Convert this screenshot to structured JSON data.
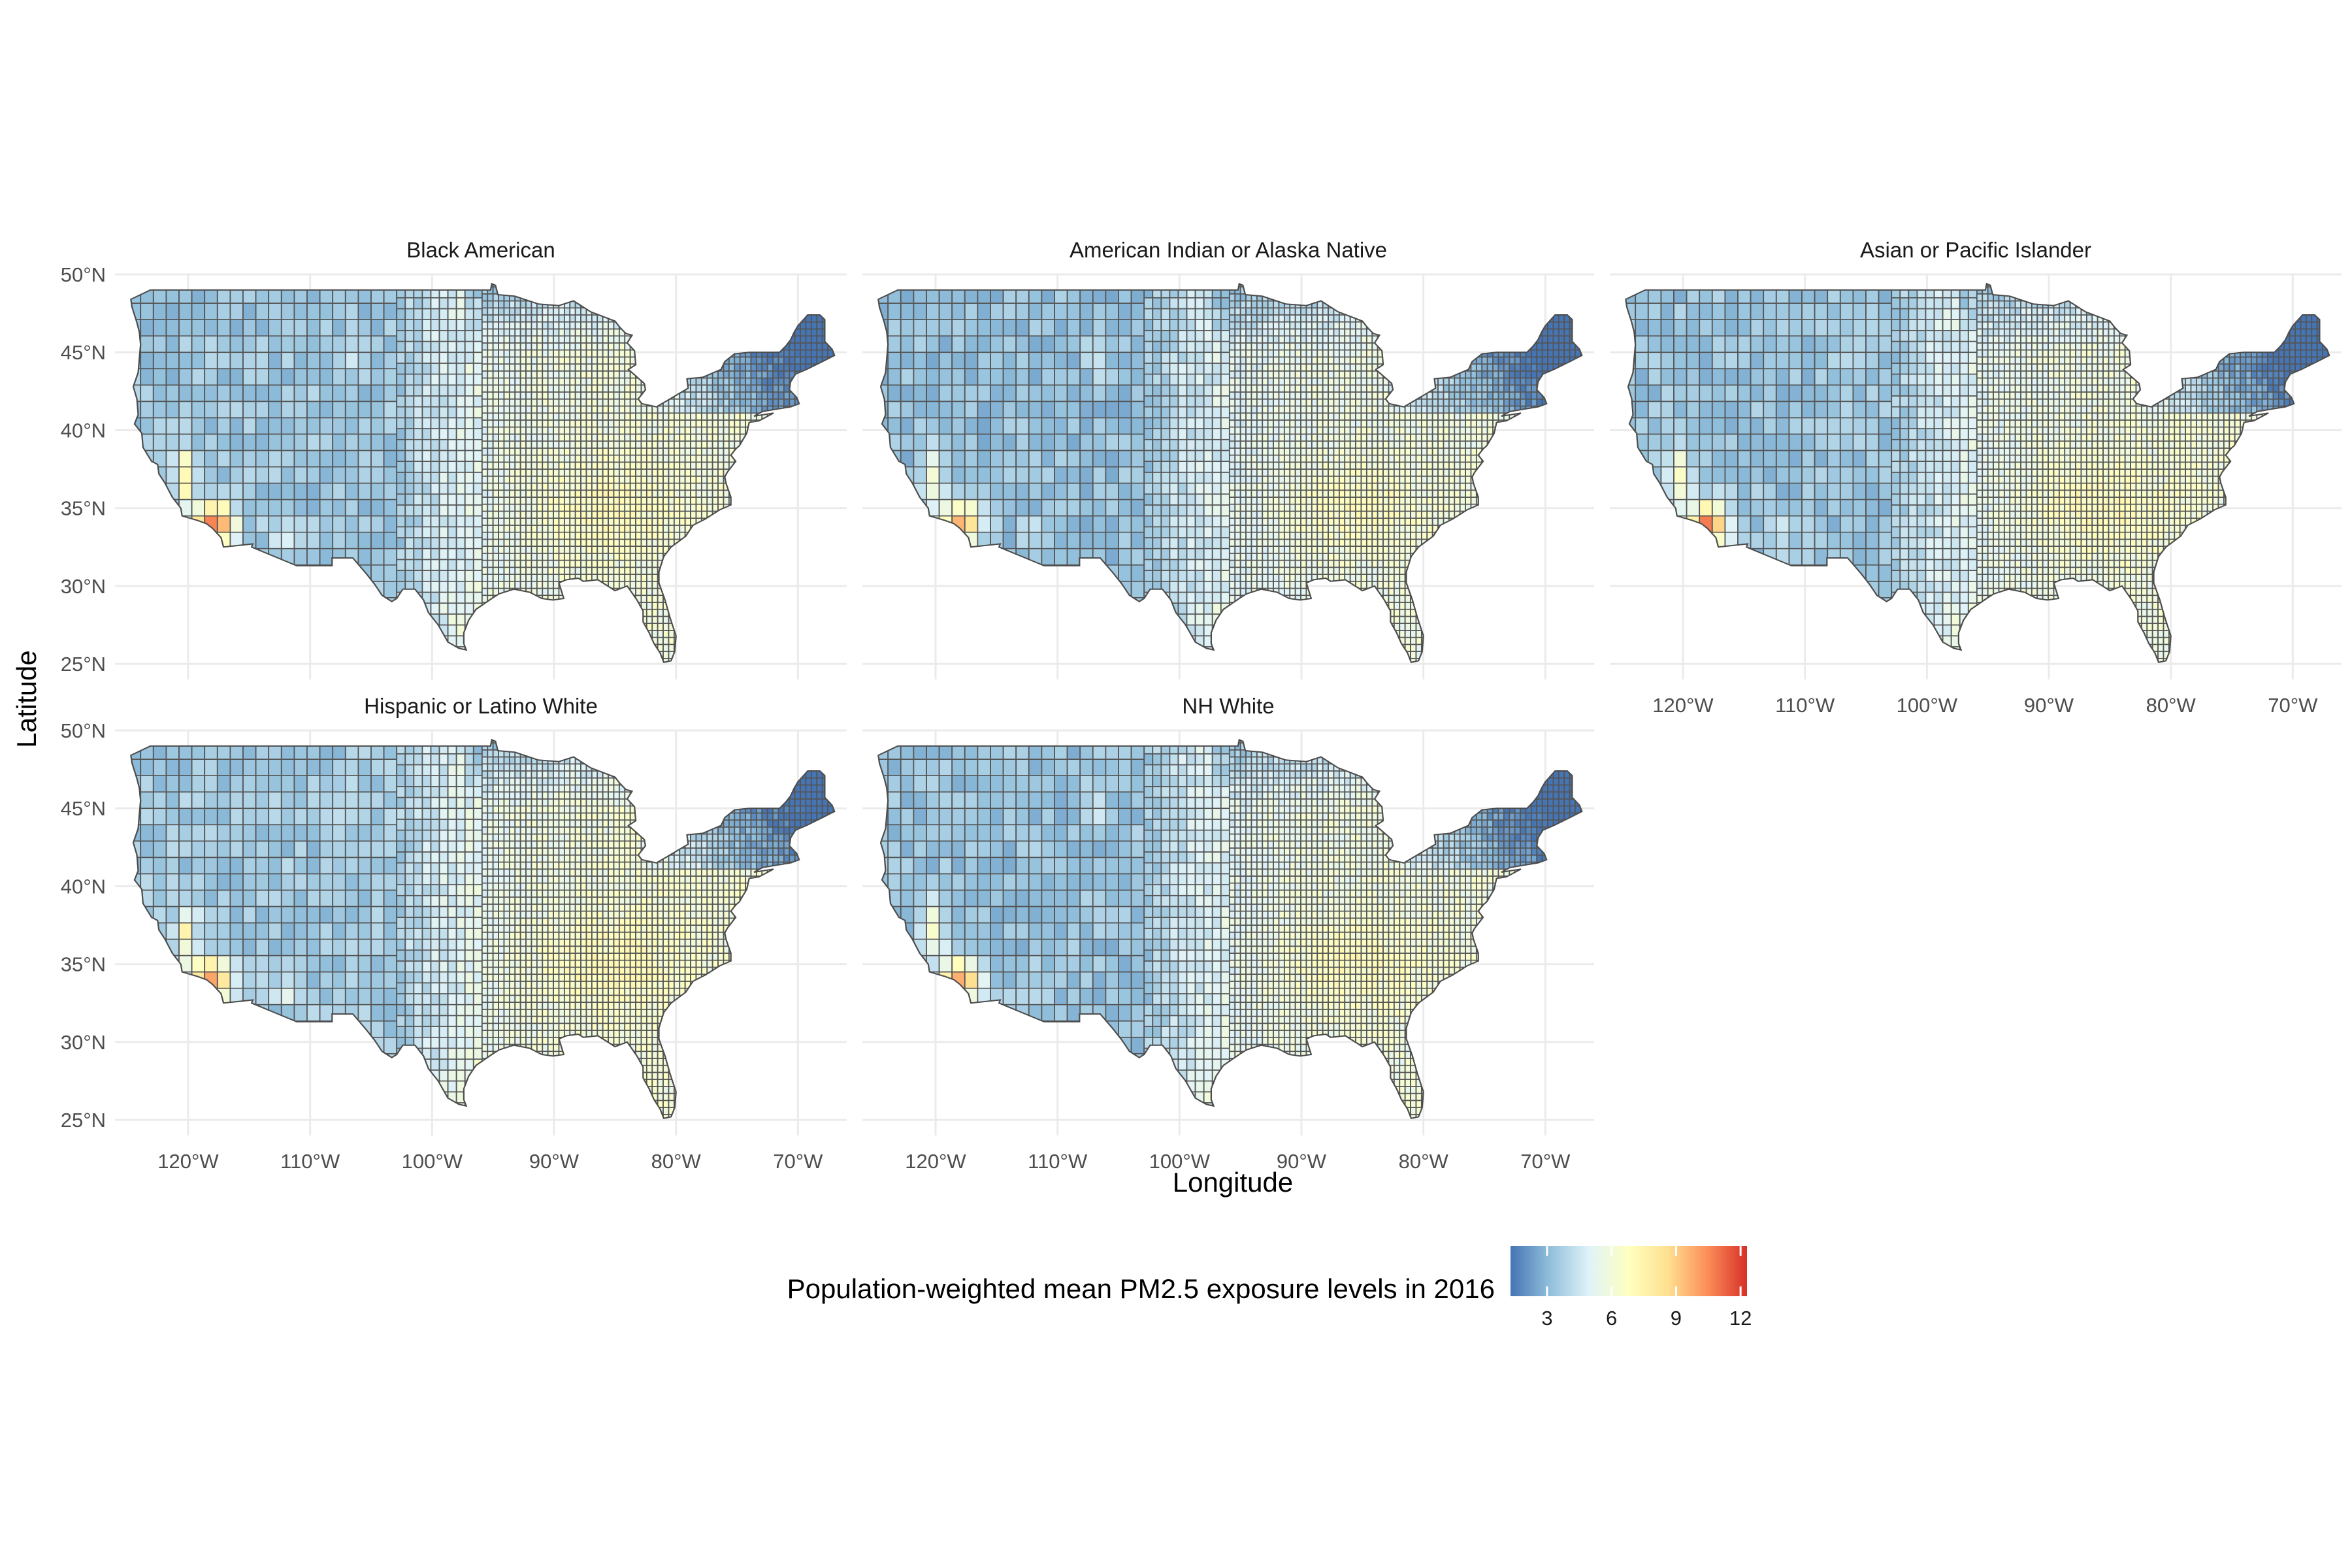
{
  "chart_data": {
    "type": "choropleth-map",
    "facet_by": "group",
    "panels": [
      {
        "title": "Black American",
        "hotspot_strength": 1.0,
        "background_shift": 0.2
      },
      {
        "title": "American Indian or Alaska Native",
        "hotspot_strength": 0.85,
        "background_shift": 0.0
      },
      {
        "title": "Asian or Pacific Islander",
        "hotspot_strength": 0.95,
        "background_shift": 0.15
      },
      {
        "title": "Hispanic or Latino White",
        "hotspot_strength": 0.9,
        "background_shift": 0.3
      },
      {
        "title": "NH White",
        "hotspot_strength": 0.85,
        "background_shift": 0.1
      }
    ],
    "xlabel": "Longitude",
    "ylabel": "Latitude",
    "x_ticks": [
      "120°W",
      "110°W",
      "100°W",
      "90°W",
      "80°W",
      "70°W"
    ],
    "x_tick_values": [
      -120,
      -110,
      -100,
      -90,
      -80,
      -70
    ],
    "y_ticks": [
      "50°N",
      "45°N",
      "40°N",
      "35°N",
      "30°N",
      "25°N"
    ],
    "y_tick_values": [
      50,
      45,
      40,
      35,
      30,
      25
    ],
    "xlim": [
      -126,
      -66
    ],
    "ylim": [
      24,
      50
    ],
    "grid": true,
    "legend": {
      "title": "Population-weighted mean PM2.5 exposure levels in 2016",
      "ticks": [
        "3",
        "6",
        "9",
        "12"
      ],
      "tick_values": [
        3,
        6,
        9,
        12
      ],
      "range": [
        1.3,
        12.3
      ],
      "colors": [
        "#4575b4",
        "#91bfdb",
        "#e0f3f8",
        "#ffffbf",
        "#fee090",
        "#fc8d59",
        "#d73027"
      ],
      "placement": "bottom-center"
    }
  }
}
